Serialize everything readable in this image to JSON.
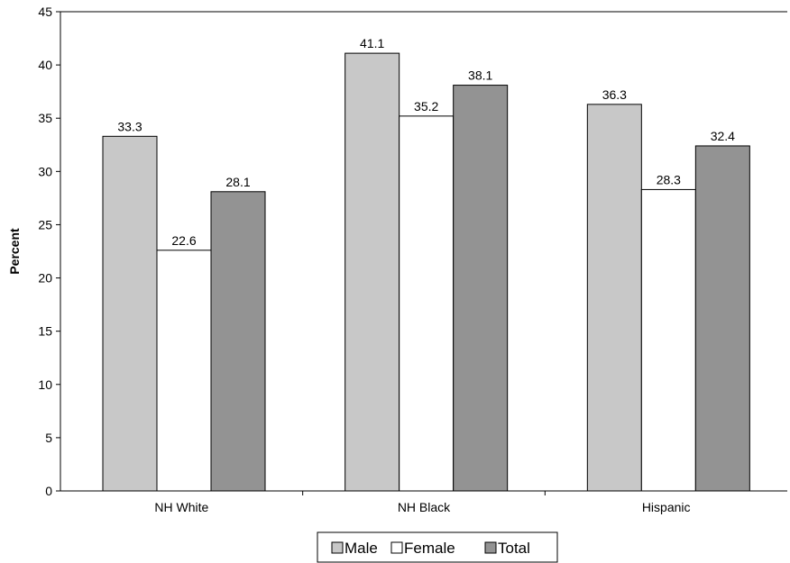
{
  "chart_data": {
    "type": "bar",
    "title": "",
    "xlabel": "",
    "ylabel": "Percent",
    "categories": [
      "NH White",
      "NH Black",
      "Hispanic"
    ],
    "series": [
      {
        "name": "Male",
        "values": [
          33.3,
          41.1,
          36.3
        ],
        "color": "#c8c8c8"
      },
      {
        "name": "Female",
        "values": [
          22.6,
          35.2,
          28.3
        ],
        "color": "#ffffff"
      },
      {
        "name": "Total",
        "values": [
          28.1,
          38.1,
          32.4
        ],
        "color": "#939393"
      }
    ],
    "value_labels": [
      [
        "33.3",
        "41.1",
        "36.3"
      ],
      [
        "22.6",
        "35.2",
        "28.3"
      ],
      [
        "28.1",
        "38.1",
        "32.4"
      ]
    ],
    "y_ticks": [
      "0",
      "5",
      "10",
      "15",
      "20",
      "25",
      "30",
      "35",
      "40",
      "45"
    ],
    "ylim": [
      0,
      45
    ],
    "grid": false,
    "legend_position": "bottom-center"
  }
}
